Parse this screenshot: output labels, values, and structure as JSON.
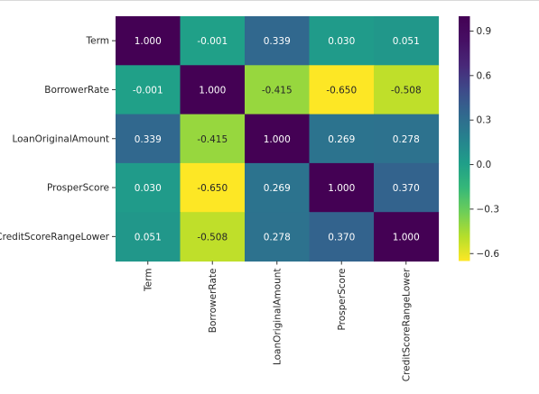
{
  "chart_data": {
    "type": "heatmap",
    "title": "",
    "xlabel": "",
    "ylabel": "",
    "rows": [
      "Term",
      "BorrowerRate",
      "LoanOriginalAmount",
      "ProsperScore",
      "CreditScoreRangeLower"
    ],
    "columns": [
      "Term",
      "BorrowerRate",
      "LoanOriginalAmount",
      "ProsperScore",
      "CreditScoreRangeLower"
    ],
    "values": [
      [
        1.0,
        -0.001,
        0.339,
        0.03,
        0.051
      ],
      [
        -0.001,
        1.0,
        -0.415,
        -0.65,
        -0.508
      ],
      [
        0.339,
        -0.415,
        1.0,
        0.269,
        0.278
      ],
      [
        0.03,
        -0.65,
        0.269,
        1.0,
        0.37
      ],
      [
        0.051,
        -0.508,
        0.278,
        0.37,
        1.0
      ]
    ],
    "annotation_format": "0.000",
    "colormap": "viridis_r",
    "vmin": -0.65,
    "vmax": 1.0,
    "colorbar": {
      "ticks": [
        0.9,
        0.6,
        0.3,
        0.0,
        -0.3,
        -0.6
      ],
      "tick_labels": [
        "0.9",
        "0.6",
        "0.3",
        "0.0",
        "−0.3",
        "−0.6"
      ]
    },
    "grid": false,
    "legend": "colorbar-right"
  }
}
